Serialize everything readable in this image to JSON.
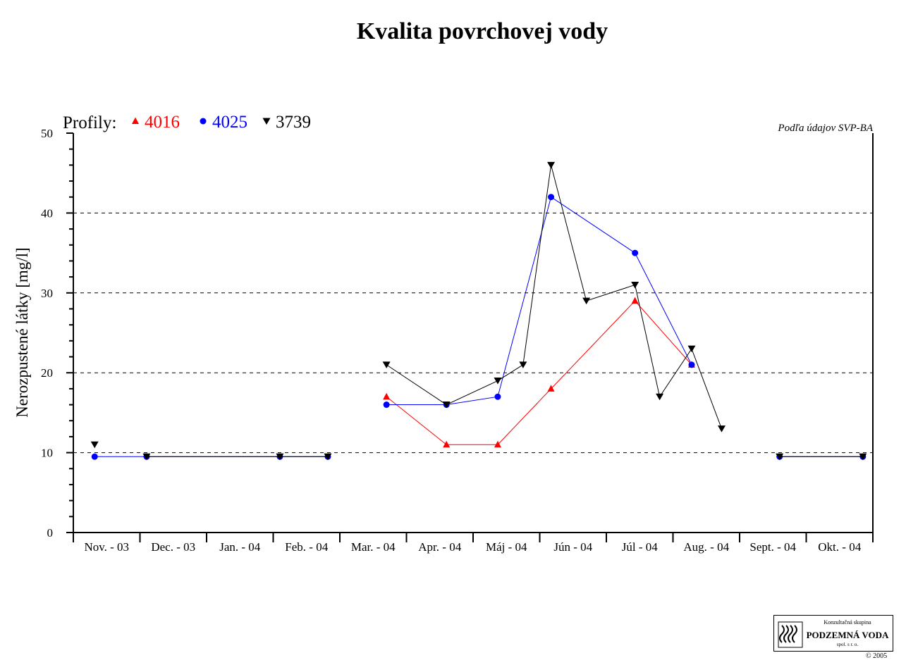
{
  "chart_data": {
    "type": "line",
    "title": "Kvalita povrchovej vody",
    "ylabel": "Nerozpustené látky [mg/l]",
    "ylim": [
      0,
      50
    ],
    "yticks": [
      0,
      10,
      20,
      30,
      40,
      50
    ],
    "grid_y": [
      10,
      20,
      30,
      40
    ],
    "legend_prefix": "Profily:",
    "legend_placement": "top-left",
    "source_note": "Podľa údajov SVP-BA",
    "categories": [
      "Nov. - 03",
      "Dec. - 03",
      "Jan. - 04",
      "Feb. - 04",
      "Mar. - 04",
      "Apr. - 04",
      "Máj - 04",
      "Jún - 04",
      "Júl - 04",
      "Aug. - 04",
      "Sept. - 04",
      "Okt. - 04"
    ],
    "series": [
      {
        "name": "4016",
        "color": "#ff0000",
        "marker": "triangle-up",
        "segments": [
          [
            [
              4.7,
              17
            ],
            [
              5.6,
              11
            ],
            [
              6.37,
              11
            ],
            [
              7.17,
              18
            ],
            [
              8.43,
              29
            ],
            [
              9.28,
              21
            ]
          ]
        ]
      },
      {
        "name": "4025",
        "color": "#0000ff",
        "marker": "circle",
        "segments": [
          [
            [
              0.32,
              9.5
            ],
            [
              1.1,
              9.5
            ],
            [
              3.1,
              9.5
            ],
            [
              3.82,
              9.5
            ]
          ],
          [
            [
              4.7,
              16
            ],
            [
              5.6,
              16
            ],
            [
              6.37,
              17
            ],
            [
              7.17,
              42
            ],
            [
              8.43,
              35
            ],
            [
              9.28,
              21
            ]
          ],
          [
            [
              10.6,
              9.5
            ],
            [
              11.85,
              9.5
            ]
          ]
        ]
      },
      {
        "name": "3739",
        "color": "#000000",
        "marker": "triangle-down",
        "segments": [
          [
            [
              0.32,
              11
            ]
          ],
          [
            [
              1.1,
              9.5
            ],
            [
              3.1,
              9.5
            ],
            [
              3.82,
              9.5
            ]
          ],
          [
            [
              4.7,
              21
            ],
            [
              5.6,
              16
            ],
            [
              6.37,
              19
            ],
            [
              6.75,
              21
            ],
            [
              7.17,
              46
            ],
            [
              7.7,
              29
            ],
            [
              8.43,
              31
            ],
            [
              8.8,
              17
            ],
            [
              9.28,
              23
            ],
            [
              9.73,
              13
            ]
          ],
          [
            [
              10.6,
              9.5
            ],
            [
              11.85,
              9.5
            ]
          ]
        ]
      }
    ]
  },
  "logo": {
    "line1": "Konzultačná skupina",
    "line2": "PODZEMNÁ VODA",
    "line3": "spol. s r. o."
  },
  "copyright": "© 2005"
}
